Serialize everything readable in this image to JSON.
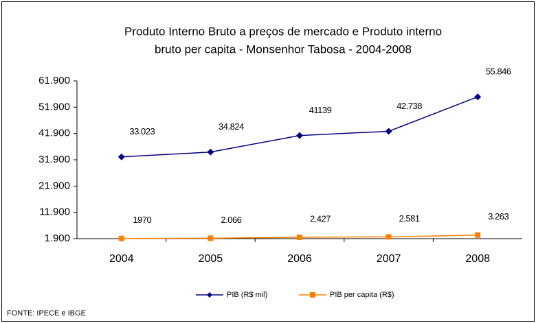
{
  "chart_data": {
    "type": "line",
    "title": [
      "Produto Interno Bruto a preços de mercado  e   Produto interno",
      "bruto per capita - Monsenhor Tabosa - 2004-2008"
    ],
    "categories": [
      "2004",
      "2005",
      "2006",
      "2007",
      "2008"
    ],
    "series": [
      {
        "name": "PIB (R$ mil)",
        "color": "#000080",
        "marker": "diamond",
        "values": [
          33023,
          34824,
          41139,
          42738,
          55846
        ],
        "value_labels": [
          "33.023",
          "34.824",
          "41139",
          "42.738",
          "55.846"
        ]
      },
      {
        "name": "PIB per capita (R$)",
        "color": "#ff8000",
        "marker": "square",
        "values": [
          1970,
          2066,
          2427,
          2581,
          3263
        ],
        "value_labels": [
          "1970",
          "2.066",
          "2.427",
          "2.581",
          "3.263"
        ]
      }
    ],
    "ylim": [
      1900,
      61900
    ],
    "yticks": [
      {
        "value": 1900,
        "label": "1.900"
      },
      {
        "value": 11900,
        "label": "11.900"
      },
      {
        "value": 21900,
        "label": "21.900"
      },
      {
        "value": 31900,
        "label": "31.900"
      },
      {
        "value": 41900,
        "label": "41.900"
      },
      {
        "value": 51900,
        "label": "51.900"
      },
      {
        "value": 61900,
        "label": "61.900"
      }
    ],
    "grid": false,
    "legend": "bottom",
    "source": "FONTE: IPECE e IBGE"
  }
}
